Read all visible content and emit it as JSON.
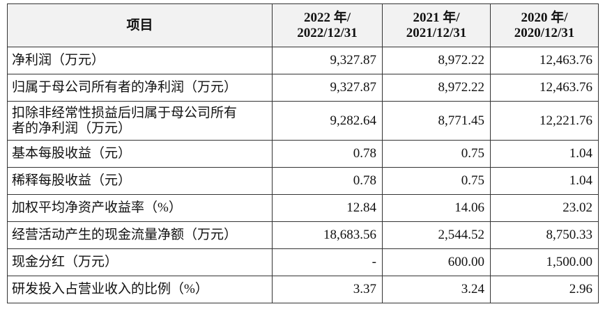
{
  "table": {
    "header": [
      [
        "项目"
      ],
      [
        "2022 年/",
        "2022/12/31"
      ],
      [
        "2021 年/",
        "2021/12/31"
      ],
      [
        "2020 年/",
        "2020/12/31"
      ]
    ],
    "rows": [
      [
        "净利润（万元）",
        "9,327.87",
        "8,972.22",
        "12,463.76"
      ],
      [
        "归属于母公司所有者的净利润（万元）",
        "9,327.87",
        "8,972.22",
        "12,463.76"
      ],
      [
        [
          "扣除非经常性损益后归属于母公司所有",
          "者的净利润（万元）"
        ],
        "9,282.64",
        "8,771.45",
        "12,221.76"
      ],
      [
        "基本每股收益（元）",
        "0.78",
        "0.75",
        "1.04"
      ],
      [
        "稀释每股收益（元）",
        "0.78",
        "0.75",
        "1.04"
      ],
      [
        "加权平均净资产收益率（%）",
        "12.84",
        "14.06",
        "23.02"
      ],
      [
        "经营活动产生的现金流量净额（万元）",
        "18,683.56",
        "2,544.52",
        "8,750.33"
      ],
      [
        "现金分红（万元）",
        "-",
        "600.00",
        "1,500.00"
      ],
      [
        "研发投入占营业收入的比例（%）",
        "3.37",
        "3.24",
        "2.96"
      ]
    ]
  }
}
